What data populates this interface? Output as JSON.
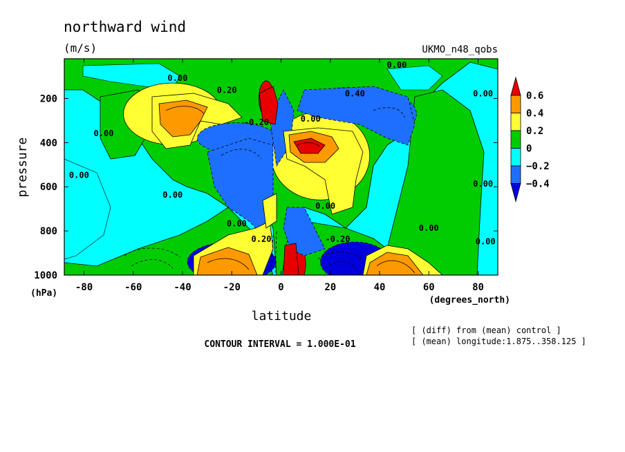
{
  "chart_data": {
    "type": "heatmap",
    "title": "northward wind",
    "units": "(m/s)",
    "dataset": "UKMO_n48_qobs",
    "xlabel": "latitude",
    "xunit": "(degrees_north)",
    "ylabel": "pressure",
    "yunit": "(hPa)",
    "xlim": [
      -88,
      88
    ],
    "ylim": [
      1000,
      20
    ],
    "xticks": [
      -80,
      -60,
      -40,
      -20,
      0,
      20,
      40,
      60,
      80
    ],
    "yticks": [
      200,
      400,
      600,
      800,
      1000
    ],
    "contour_interval": "CONTOUR INTERVAL = 1.000E-01",
    "notes": [
      "[ (diff) from (mean) control ]",
      "[ (mean) longitude:1.875..358.125 ]"
    ],
    "colorbar": {
      "labels": [
        "0.6",
        "0.4",
        "0.2",
        "0",
        "−0.2",
        "−0.4"
      ],
      "colors": [
        "#e60000",
        "#ff9900",
        "#ffff33",
        "#00cc00",
        "#00ffff",
        "#1f6fff",
        "#0000dd"
      ]
    },
    "contour_labels": [
      {
        "text": "0.00",
        "lat": -42,
        "p": 120
      },
      {
        "text": "0.20",
        "lat": -22,
        "p": 175
      },
      {
        "text": "0.40",
        "lat": 30,
        "p": 190
      },
      {
        "text": "0.00",
        "lat": 47,
        "p": 60
      },
      {
        "text": "0.00",
        "lat": 82,
        "p": 190
      },
      {
        "text": "0.00",
        "lat": -72,
        "p": 370
      },
      {
        "text": "-0.20",
        "lat": -10,
        "p": 320
      },
      {
        "text": "0.00",
        "lat": 12,
        "p": 305
      },
      {
        "text": "0.00",
        "lat": -82,
        "p": 560
      },
      {
        "text": "0.00",
        "lat": -44,
        "p": 650
      },
      {
        "text": "0.00",
        "lat": 18,
        "p": 700
      },
      {
        "text": "0.00",
        "lat": -18,
        "p": 780
      },
      {
        "text": "0.20",
        "lat": -8,
        "p": 850
      },
      {
        "text": "-0.20",
        "lat": 23,
        "p": 850
      },
      {
        "text": "0.00",
        "lat": 60,
        "p": 800
      },
      {
        "text": "0.00",
        "lat": 82,
        "p": 600
      },
      {
        "text": "0.00",
        "lat": 83,
        "p": 860
      }
    ],
    "blobs": [
      {
        "level": "0.4",
        "lat": -44,
        "p": 250,
        "dlat": 14,
        "dp": 90
      },
      {
        "level": "0.2",
        "lat": -44,
        "p": 270,
        "dlat": 20,
        "dp": 140
      },
      {
        "level": "0.4",
        "lat": 8,
        "p": 400,
        "dlat": 14,
        "dp": 80
      },
      {
        "level": "0.2",
        "lat": 16,
        "p": 460,
        "dlat": 20,
        "dp": 200
      },
      {
        "level": "-0.2",
        "lat": -18,
        "p": 380,
        "dlat": 16,
        "dp": 70
      },
      {
        "level": "-0.2",
        "lat": 27,
        "p": 220,
        "dlat": 14,
        "dp": 70
      },
      {
        "level": "-0.2",
        "lat": 47,
        "p": 270,
        "dlat": 8,
        "dp": 70
      },
      {
        "level": "-0.4",
        "lat": -20,
        "p": 940,
        "dlat": 18,
        "dp": 90
      },
      {
        "level": "-0.4",
        "lat": 30,
        "p": 940,
        "dlat": 14,
        "dp": 90
      },
      {
        "level": "0.6",
        "lat": -24,
        "p": 965,
        "dlat": 9,
        "dp": 45
      },
      {
        "level": "0.6",
        "lat": 43,
        "p": 965,
        "dlat": 9,
        "dp": 45
      },
      {
        "level": "0.6",
        "lat": -6,
        "p": 200,
        "dlat": 3,
        "dp": 80
      },
      {
        "level": "0.6",
        "lat": 7,
        "p": 950,
        "dlat": 3,
        "dp": 80
      }
    ]
  }
}
